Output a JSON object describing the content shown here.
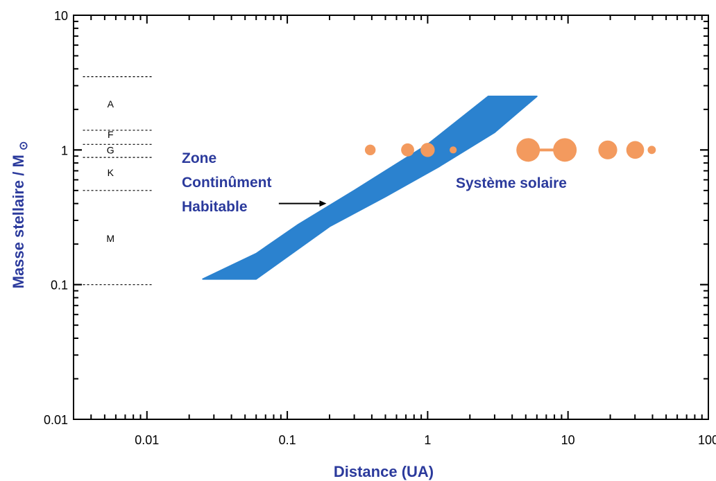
{
  "chart_data": {
    "type": "scatter",
    "xlabel": "Distance (UA)",
    "ylabel": "Masse stellaire / M",
    "ylabel_symbol": "⊙",
    "x_scale": "log",
    "y_scale": "log",
    "xlim": [
      0.003,
      100
    ],
    "ylim": [
      0.01,
      10
    ],
    "x_ticks": [
      {
        "value": 0.01,
        "label": "0.01"
      },
      {
        "value": 0.1,
        "label": "0.1"
      },
      {
        "value": 1,
        "label": "1"
      },
      {
        "value": 10,
        "label": "10"
      },
      {
        "value": 100,
        "label": "100"
      }
    ],
    "y_ticks": [
      {
        "value": 0.01,
        "label": "0.01"
      },
      {
        "value": 0.1,
        "label": "0.1"
      },
      {
        "value": 1,
        "label": "1"
      },
      {
        "value": 10,
        "label": "10"
      }
    ],
    "habitable_zone": {
      "label_lines": [
        "Zone",
        "Continûment",
        "Habitable"
      ],
      "color": "#2b82cf",
      "polygon": [
        [
          0.025,
          0.11
        ],
        [
          0.06,
          0.11
        ],
        [
          0.2,
          0.27
        ],
        [
          0.5,
          0.45
        ],
        [
          1.2,
          0.75
        ],
        [
          3.0,
          1.35
        ],
        [
          6.0,
          2.5
        ],
        [
          2.7,
          2.5
        ],
        [
          1.0,
          1.1
        ],
        [
          0.3,
          0.5
        ],
        [
          0.12,
          0.28
        ],
        [
          0.06,
          0.17
        ]
      ],
      "arrow_from": [
        0.087,
        0.4
      ],
      "arrow_to": [
        0.19,
        0.4
      ]
    },
    "solar_system": {
      "label": "Système solaire",
      "color": "#f39a5e",
      "stellar_mass": 1,
      "planets": [
        {
          "distance": 0.39,
          "relative_size": 0.45
        },
        {
          "distance": 0.72,
          "relative_size": 0.55
        },
        {
          "distance": 1.0,
          "relative_size": 0.6
        },
        {
          "distance": 1.52,
          "relative_size": 0.3
        },
        {
          "distance": 5.2,
          "relative_size": 1.0
        },
        {
          "distance": 9.5,
          "relative_size": 1.0
        },
        {
          "distance": 19.2,
          "relative_size": 0.8
        },
        {
          "distance": 30.1,
          "relative_size": 0.75
        },
        {
          "distance": 39.5,
          "relative_size": 0.35
        }
      ]
    },
    "spectral_types": {
      "boundaries": [
        3.5,
        1.4,
        1.1,
        0.88,
        0.5,
        0.1
      ],
      "labels": [
        {
          "text": "A",
          "mass": 2.2
        },
        {
          "text": "F",
          "mass": 1.3
        },
        {
          "text": "G",
          "mass": 1.0
        },
        {
          "text": "K",
          "mass": 0.68
        },
        {
          "text": "M",
          "mass": 0.22
        }
      ]
    }
  }
}
